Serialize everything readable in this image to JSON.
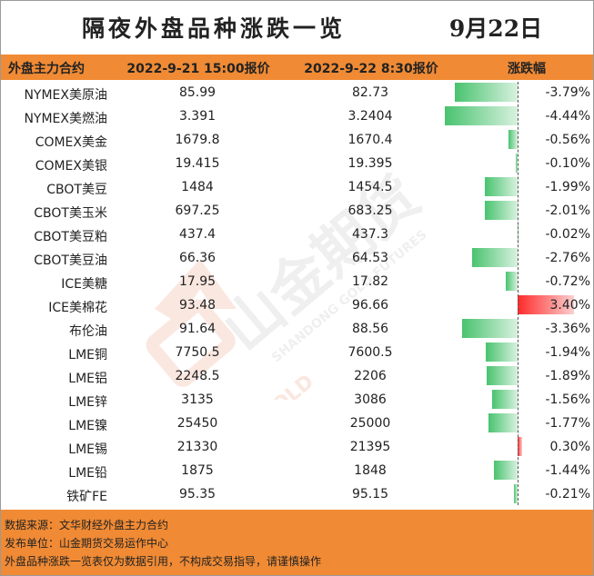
{
  "title": "隔夜外盘品种涨跌一览",
  "date": "9月22日",
  "headers": [
    "外盘主力合约",
    "2022-9-21 15:00报价",
    "2022-9-22 8:30报价",
    "涨跌幅"
  ],
  "watermark": {
    "brand": "山金期货",
    "en": "SHANDONG GOLD FUTURES",
    "sub": "SD-GOLD"
  },
  "chart_data": {
    "type": "table",
    "columns": [
      "外盘主力合约",
      "2022-9-21 15:00报价",
      "2022-9-22 8:30报价",
      "涨跌幅"
    ],
    "rows": [
      {
        "name": "NYMEX美原油",
        "prev": "85.99",
        "curr": "82.73",
        "pct_text": "-3.79%",
        "pct": -3.79
      },
      {
        "name": "NYMEX美燃油",
        "prev": "3.391",
        "curr": "3.2404",
        "pct_text": "-4.44%",
        "pct": -4.44
      },
      {
        "name": "COMEX美金",
        "prev": "1679.8",
        "curr": "1670.4",
        "pct_text": "-0.56%",
        "pct": -0.56
      },
      {
        "name": "COMEX美银",
        "prev": "19.415",
        "curr": "19.395",
        "pct_text": "-0.10%",
        "pct": -0.1
      },
      {
        "name": "CBOT美豆",
        "prev": "1484",
        "curr": "1454.5",
        "pct_text": "-1.99%",
        "pct": -1.99
      },
      {
        "name": "CBOT美玉米",
        "prev": "697.25",
        "curr": "683.25",
        "pct_text": "-2.01%",
        "pct": -2.01
      },
      {
        "name": "CBOT美豆粕",
        "prev": "437.4",
        "curr": "437.3",
        "pct_text": "-0.02%",
        "pct": -0.02
      },
      {
        "name": "CBOT美豆油",
        "prev": "66.36",
        "curr": "64.53",
        "pct_text": "-2.76%",
        "pct": -2.76
      },
      {
        "name": "ICE美糖",
        "prev": "17.95",
        "curr": "17.82",
        "pct_text": "-0.72%",
        "pct": -0.72
      },
      {
        "name": "ICE美棉花",
        "prev": "93.48",
        "curr": "96.66",
        "pct_text": "3.40%",
        "pct": 3.4
      },
      {
        "name": "布伦油",
        "prev": "91.64",
        "curr": "88.56",
        "pct_text": "-3.36%",
        "pct": -3.36
      },
      {
        "name": "LME铜",
        "prev": "7750.5",
        "curr": "7600.5",
        "pct_text": "-1.94%",
        "pct": -1.94
      },
      {
        "name": "LME铝",
        "prev": "2248.5",
        "curr": "2206",
        "pct_text": "-1.89%",
        "pct": -1.89
      },
      {
        "name": "LME锌",
        "prev": "3135",
        "curr": "3086",
        "pct_text": "-1.56%",
        "pct": -1.56
      },
      {
        "name": "LME镍",
        "prev": "25450",
        "curr": "25000",
        "pct_text": "-1.77%",
        "pct": -1.77
      },
      {
        "name": "LME锡",
        "prev": "21330",
        "curr": "21395",
        "pct_text": "0.30%",
        "pct": 0.3
      },
      {
        "name": "LME铅",
        "prev": "1875",
        "curr": "1848",
        "pct_text": "-1.44%",
        "pct": -1.44
      },
      {
        "name": "铁矿FE",
        "prev": "95.35",
        "curr": "95.15",
        "pct_text": "-0.21%",
        "pct": -0.21
      }
    ],
    "bar_colors": {
      "negative": "#49c36f",
      "positive": "#ff2a2a"
    }
  },
  "footer": {
    "source": "数据来源：文华财经外盘主力合约",
    "publisher": "发布单位：山金期货交易运作中心",
    "disclaimer": "外盘品种涨跌一览表仅为数据引用，不构成交易指导，请谨慎操作"
  },
  "colors": {
    "header_bg": "#f08a34",
    "footer_bg": "#f08a34"
  }
}
